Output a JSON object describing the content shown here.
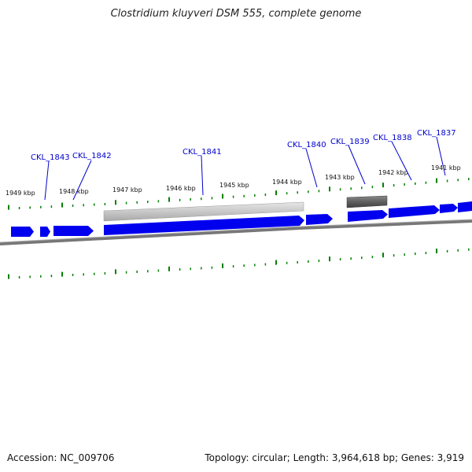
{
  "header": {
    "title": "Clostridium kluyveri DSM 555, complete genome"
  },
  "footer": {
    "accession": "Accession: NC_009706",
    "stats": "Topology: circular; Length: 3,964,618 bp; Genes: 3,919"
  },
  "genome_map": {
    "colors": {
      "gene": "#0000ee",
      "label": "#0000cc",
      "tick": "#008000",
      "backbone": "#777777",
      "region_light": "#c8c8c8",
      "region_dark": "#606060"
    },
    "kbp_labels": [
      "1949 kbp",
      "1948 kbp",
      "1947 kbp",
      "1946 kbp",
      "1945 kbp",
      "1944 kbp",
      "1943 kbp",
      "1942 kbp",
      "1941 kbp"
    ],
    "gene_labels": [
      "CKL_1843",
      "CKL_1842",
      "CKL_1841",
      "CKL_1840",
      "CKL_1839",
      "CKL_1838",
      "CKL_1837"
    ],
    "genes": [
      {
        "strand": "+",
        "from_kbp": 1949.3,
        "to_kbp": 1948.8
      },
      {
        "strand": "+",
        "from_kbp": 1948.7,
        "to_kbp": 1948.5
      },
      {
        "strand": "+",
        "from_kbp": 1948.4,
        "to_kbp": 1947.7
      },
      {
        "strand": "+",
        "from_kbp": 1947.6,
        "to_kbp": 1943.8
      },
      {
        "strand": "+",
        "from_kbp": 1943.7,
        "to_kbp": 1943.2
      },
      {
        "strand": "+",
        "from_kbp": 1942.9,
        "to_kbp": 1942.2
      },
      {
        "strand": "+",
        "from_kbp": 1942.1,
        "to_kbp": 1941.1
      },
      {
        "strand": "+",
        "from_kbp": 1941.0,
        "to_kbp": 1940.7
      },
      {
        "strand": "+",
        "from_kbp": 1940.6,
        "to_kbp": 1940.3
      }
    ],
    "regions": [
      {
        "shade": "light",
        "from_kbp": 1947.6,
        "to_kbp": 1943.8
      },
      {
        "shade": "dark",
        "from_kbp": 1942.9,
        "to_kbp": 1942.2
      }
    ]
  }
}
